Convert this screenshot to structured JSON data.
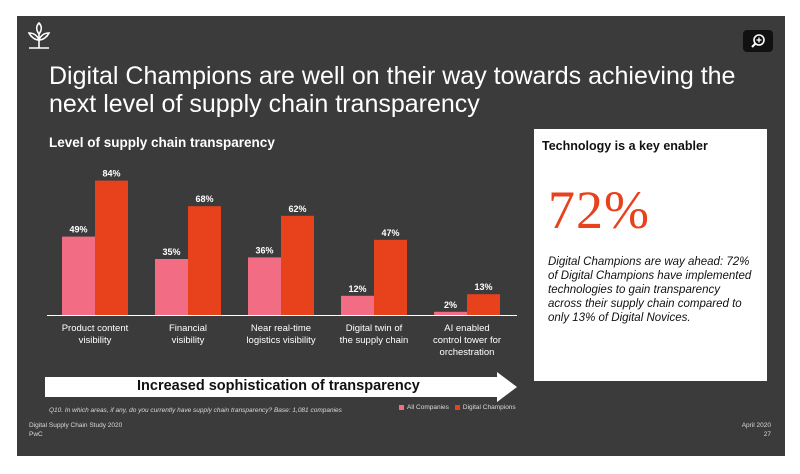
{
  "header": {
    "title_line1": "Digital Champions are well on their way towards achieving the",
    "title_line2": "next level of supply chain transparency"
  },
  "icons": {
    "logo": "sprout-logo-icon",
    "zoom": "zoom-in-icon"
  },
  "colors": {
    "background": "#3c3b3b",
    "all_companies": "#f26d83",
    "digital_champions": "#e8421c"
  },
  "chart_data": {
    "type": "bar",
    "title": "Level of supply chain transparency",
    "categories": [
      [
        "Product content",
        "visibility"
      ],
      [
        "Financial",
        "visibility"
      ],
      [
        "Near real-time",
        "logistics visibility"
      ],
      [
        "Digital twin of",
        "the supply chain"
      ],
      [
        "AI enabled",
        "control tower for",
        "orchestration"
      ]
    ],
    "series": [
      {
        "name": "All Companies",
        "values": [
          49,
          35,
          36,
          12,
          2
        ],
        "labels": [
          "49%",
          "35%",
          "36%",
          "12%",
          "2%"
        ]
      },
      {
        "name": "Digital Champions",
        "values": [
          84,
          68,
          62,
          47,
          13
        ],
        "labels": [
          "84%",
          "68%",
          "62%",
          "47%",
          "13%"
        ]
      }
    ],
    "ylim": [
      0,
      100
    ],
    "grid": false,
    "legend": "bottom-right"
  },
  "arrow_label": "Increased sophistication of transparency",
  "footnote": "Q10. In which areas, if any, do you currently have supply chain transparency? Base: 1,081 companies",
  "legend": {
    "all": "All Companies",
    "champions": "Digital Champions"
  },
  "panel": {
    "title": "Technology is a key enabler",
    "big_number": "72%",
    "body": "Digital Champions are way ahead: 72% of Digital Champions have implemented technologies to gain transparency across their supply chain compared to only 13% of Digital Novices."
  },
  "footer": {
    "study": "Digital Supply Chain Study 2020",
    "org": "PwC",
    "date": "April 2020",
    "page": "27"
  }
}
